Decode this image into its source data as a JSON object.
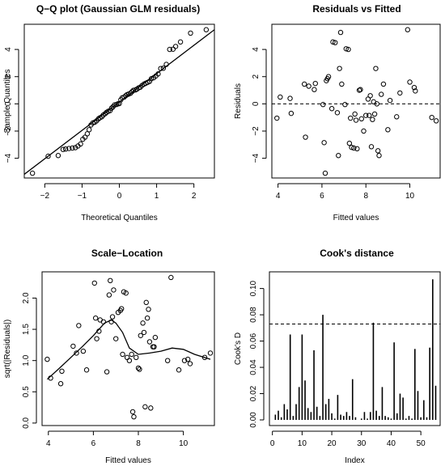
{
  "chart_data": [
    {
      "type": "scatter",
      "title": "Q−Q plot (Gaussian GLM residuals)",
      "xlabel": "Theoretical Quantiles",
      "ylabel": "Sample Quantiles",
      "xlim": [
        -2.55,
        2.55
      ],
      "ylim": [
        -5.45,
        5.85
      ],
      "xticks": [
        -2,
        -1,
        0,
        1,
        2
      ],
      "xtick_labels": [
        "−2",
        "−1",
        "0",
        "1",
        "2"
      ],
      "yticks": [
        -4,
        -2,
        0,
        2,
        4
      ],
      "ytick_labels": [
        "−4",
        "−2",
        "0",
        "2",
        "4"
      ],
      "reference_line": {
        "x": [
          -2.55,
          2.55
        ],
        "y": [
          -5.18,
          5.45
        ]
      },
      "points": {
        "x": [
          -2.33,
          -1.91,
          -1.64,
          -1.51,
          -1.44,
          -1.35,
          -1.26,
          -1.18,
          -1.11,
          -1.04,
          -0.98,
          -0.92,
          -0.86,
          -0.81,
          -0.76,
          -0.71,
          -0.66,
          -0.61,
          -0.56,
          -0.52,
          -0.47,
          -0.43,
          -0.38,
          -0.34,
          -0.3,
          -0.25,
          -0.21,
          -0.17,
          -0.13,
          -0.08,
          -0.04,
          0.0,
          0.04,
          0.08,
          0.13,
          0.17,
          0.21,
          0.25,
          0.3,
          0.34,
          0.38,
          0.43,
          0.47,
          0.52,
          0.56,
          0.61,
          0.66,
          0.71,
          0.76,
          0.81,
          0.86,
          0.92,
          0.98,
          1.04,
          1.11,
          1.18,
          1.26,
          1.35,
          1.44,
          1.51,
          1.64,
          1.91,
          2.33
        ],
        "y": [
          -5.1,
          -3.85,
          -3.8,
          -3.35,
          -3.32,
          -3.28,
          -3.25,
          -3.22,
          -3.1,
          -2.95,
          -2.6,
          -2.45,
          -2.2,
          -1.9,
          -1.55,
          -1.4,
          -1.35,
          -1.25,
          -1.1,
          -1.02,
          -0.95,
          -0.82,
          -0.72,
          -0.62,
          -0.55,
          -0.5,
          -0.32,
          -0.22,
          -0.08,
          -0.05,
          0.0,
          0.02,
          0.3,
          0.45,
          0.5,
          0.6,
          0.68,
          0.72,
          0.78,
          0.9,
          1.0,
          1.02,
          1.08,
          1.18,
          1.22,
          1.35,
          1.45,
          1.52,
          1.58,
          1.65,
          1.85,
          1.92,
          2.05,
          2.2,
          2.6,
          2.62,
          2.9,
          4.0,
          4.02,
          4.22,
          4.55,
          5.2,
          5.45
        ]
      }
    },
    {
      "type": "scatter",
      "title": "Residuals vs Fitted",
      "xlabel": "Fitted values",
      "ylabel": "Residuals",
      "xlim": [
        3.72,
        11.38
      ],
      "ylim": [
        -5.45,
        5.85
      ],
      "xticks": [
        4,
        6,
        8,
        10
      ],
      "xtick_labels": [
        "4",
        "6",
        "8",
        "10"
      ],
      "yticks": [
        -4,
        -2,
        0,
        2,
        4
      ],
      "ytick_labels": [
        "−4",
        "−2",
        "0",
        "2",
        "4"
      ],
      "hline": 0,
      "points": {
        "x": [
          3.95,
          4.1,
          4.55,
          4.6,
          5.2,
          5.25,
          5.4,
          5.65,
          5.7,
          6.05,
          6.1,
          6.15,
          6.2,
          6.25,
          6.3,
          6.45,
          6.5,
          6.6,
          6.7,
          6.75,
          6.8,
          6.85,
          6.9,
          7.05,
          7.1,
          7.2,
          7.25,
          7.3,
          7.35,
          7.45,
          7.5,
          7.55,
          7.6,
          7.7,
          7.75,
          7.8,
          7.9,
          8.0,
          8.1,
          8.15,
          8.2,
          8.25,
          8.3,
          8.35,
          8.4,
          8.45,
          8.5,
          8.55,
          8.6,
          8.7,
          8.8,
          9.0,
          9.1,
          9.4,
          9.55,
          9.9,
          10.0,
          10.2,
          10.25,
          11.0,
          11.2
        ],
        "y": [
          -1.05,
          0.5,
          0.4,
          -0.7,
          1.45,
          -2.45,
          1.3,
          1.05,
          1.5,
          -0.05,
          -2.85,
          -5.1,
          1.7,
          1.85,
          2.0,
          -0.35,
          4.55,
          4.5,
          -0.65,
          -3.8,
          2.6,
          5.25,
          1.45,
          -0.05,
          4.05,
          4.0,
          -2.9,
          -1.05,
          -3.2,
          -3.25,
          -0.75,
          -1.2,
          -3.3,
          1.0,
          1.05,
          -1.1,
          -2.0,
          -0.85,
          0.35,
          -0.85,
          0.6,
          -3.15,
          -1.15,
          0.15,
          -0.75,
          2.6,
          0.0,
          -3.45,
          -3.8,
          0.7,
          1.45,
          -1.9,
          0.25,
          -0.95,
          0.8,
          5.45,
          1.6,
          1.2,
          0.95,
          -1.0,
          -1.25
        ]
      }
    },
    {
      "type": "scatter",
      "title": "Scale−Location",
      "xlabel": "Fitted values",
      "ylabel": "sqrt(|Residuals|)",
      "xlim": [
        3.72,
        11.38
      ],
      "ylim": [
        -0.04,
        2.42
      ],
      "xticks": [
        4,
        6,
        8,
        10
      ],
      "xtick_labels": [
        "4",
        "6",
        "8",
        "10"
      ],
      "yticks": [
        0.0,
        0.5,
        1.0,
        1.5,
        2.0
      ],
      "ytick_labels": [
        "0.0",
        "0.5",
        "1.0",
        "1.5",
        "2.0"
      ],
      "smooth": {
        "x": [
          3.95,
          4.5,
          5.0,
          5.5,
          6.0,
          6.5,
          6.8,
          7.0,
          7.3,
          7.6,
          8.0,
          8.5,
          9.0,
          9.5,
          10.0,
          10.5,
          11.2
        ],
        "y": [
          0.7,
          0.88,
          1.05,
          1.22,
          1.4,
          1.6,
          1.65,
          1.6,
          1.45,
          1.2,
          1.1,
          1.12,
          1.15,
          1.2,
          1.18,
          1.1,
          1.02
        ]
      },
      "points": {
        "x": [
          3.95,
          4.1,
          4.55,
          4.6,
          5.1,
          5.25,
          5.35,
          5.55,
          5.7,
          6.05,
          6.1,
          6.15,
          6.25,
          6.3,
          6.45,
          6.6,
          6.7,
          6.75,
          6.8,
          6.85,
          6.9,
          7.0,
          7.1,
          7.2,
          7.25,
          7.3,
          7.35,
          7.45,
          7.5,
          7.6,
          7.7,
          7.75,
          7.8,
          7.9,
          8.0,
          8.05,
          8.1,
          8.2,
          8.25,
          8.3,
          8.35,
          8.4,
          8.45,
          8.5,
          8.55,
          8.65,
          8.7,
          8.75,
          9.3,
          9.45,
          9.8,
          10.05,
          10.2,
          10.3,
          10.95,
          11.2
        ],
        "y": [
          1.02,
          0.72,
          0.63,
          0.83,
          1.23,
          1.12,
          1.56,
          1.15,
          0.85,
          2.24,
          1.68,
          1.35,
          1.47,
          1.65,
          1.62,
          0.82,
          2.05,
          2.28,
          1.62,
          1.7,
          2.13,
          1.35,
          1.77,
          1.8,
          1.83,
          1.1,
          2.1,
          2.08,
          1.05,
          1.0,
          1.1,
          0.18,
          0.1,
          1.05,
          0.88,
          0.86,
          1.4,
          1.6,
          1.45,
          0.26,
          1.93,
          1.68,
          1.82,
          1.3,
          0.24,
          1.22,
          1.22,
          1.37,
          1.0,
          2.33,
          0.85,
          1.0,
          1.02,
          0.95,
          1.05,
          1.12
        ]
      }
    },
    {
      "type": "bar",
      "title": "Cook's distance",
      "xlabel": "Index",
      "ylabel": "Cook's D",
      "xlim": [
        -1,
        56.5
      ],
      "ylim": [
        -0.0043,
        0.1127
      ],
      "xticks": [
        0,
        10,
        20,
        30,
        40,
        50
      ],
      "xtick_labels": [
        "0",
        "10",
        "20",
        "30",
        "40",
        "50"
      ],
      "yticks": [
        0.0,
        0.02,
        0.04,
        0.06,
        0.08,
        0.1
      ],
      "ytick_labels": [
        "0.00",
        "0.02",
        "0.04",
        "0.06",
        "0.08",
        "0.10"
      ],
      "hline": 0.073,
      "index": [
        1,
        2,
        3,
        4,
        5,
        6,
        7,
        8,
        9,
        10,
        11,
        12,
        13,
        14,
        15,
        16,
        17,
        18,
        19,
        20,
        21,
        22,
        23,
        24,
        25,
        26,
        27,
        28,
        29,
        30,
        31,
        32,
        33,
        34,
        35,
        36,
        37,
        38,
        39,
        40,
        41,
        42,
        43,
        44,
        45,
        46,
        47,
        48,
        49,
        50,
        51,
        52,
        53,
        54,
        55
      ],
      "values": [
        0.004,
        0.007,
        0.002,
        0.012,
        0.008,
        0.065,
        0.003,
        0.012,
        0.025,
        0.065,
        0.03,
        0.009,
        0.006,
        0.053,
        0.01,
        0.003,
        0.08,
        0.012,
        0.016,
        0.005,
        0.001,
        0.019,
        0.004,
        0.003,
        0.006,
        0.003,
        0.031,
        0.002,
        0.0,
        0.001,
        0.006,
        0.001,
        0.006,
        0.074,
        0.007,
        0.003,
        0.025,
        0.003,
        0.002,
        0.001,
        0.059,
        0.005,
        0.02,
        0.017,
        0.001,
        0.003,
        0.001,
        0.054,
        0.022,
        0.002,
        0.015,
        0.002,
        0.055,
        0.107,
        0.026
      ]
    }
  ]
}
